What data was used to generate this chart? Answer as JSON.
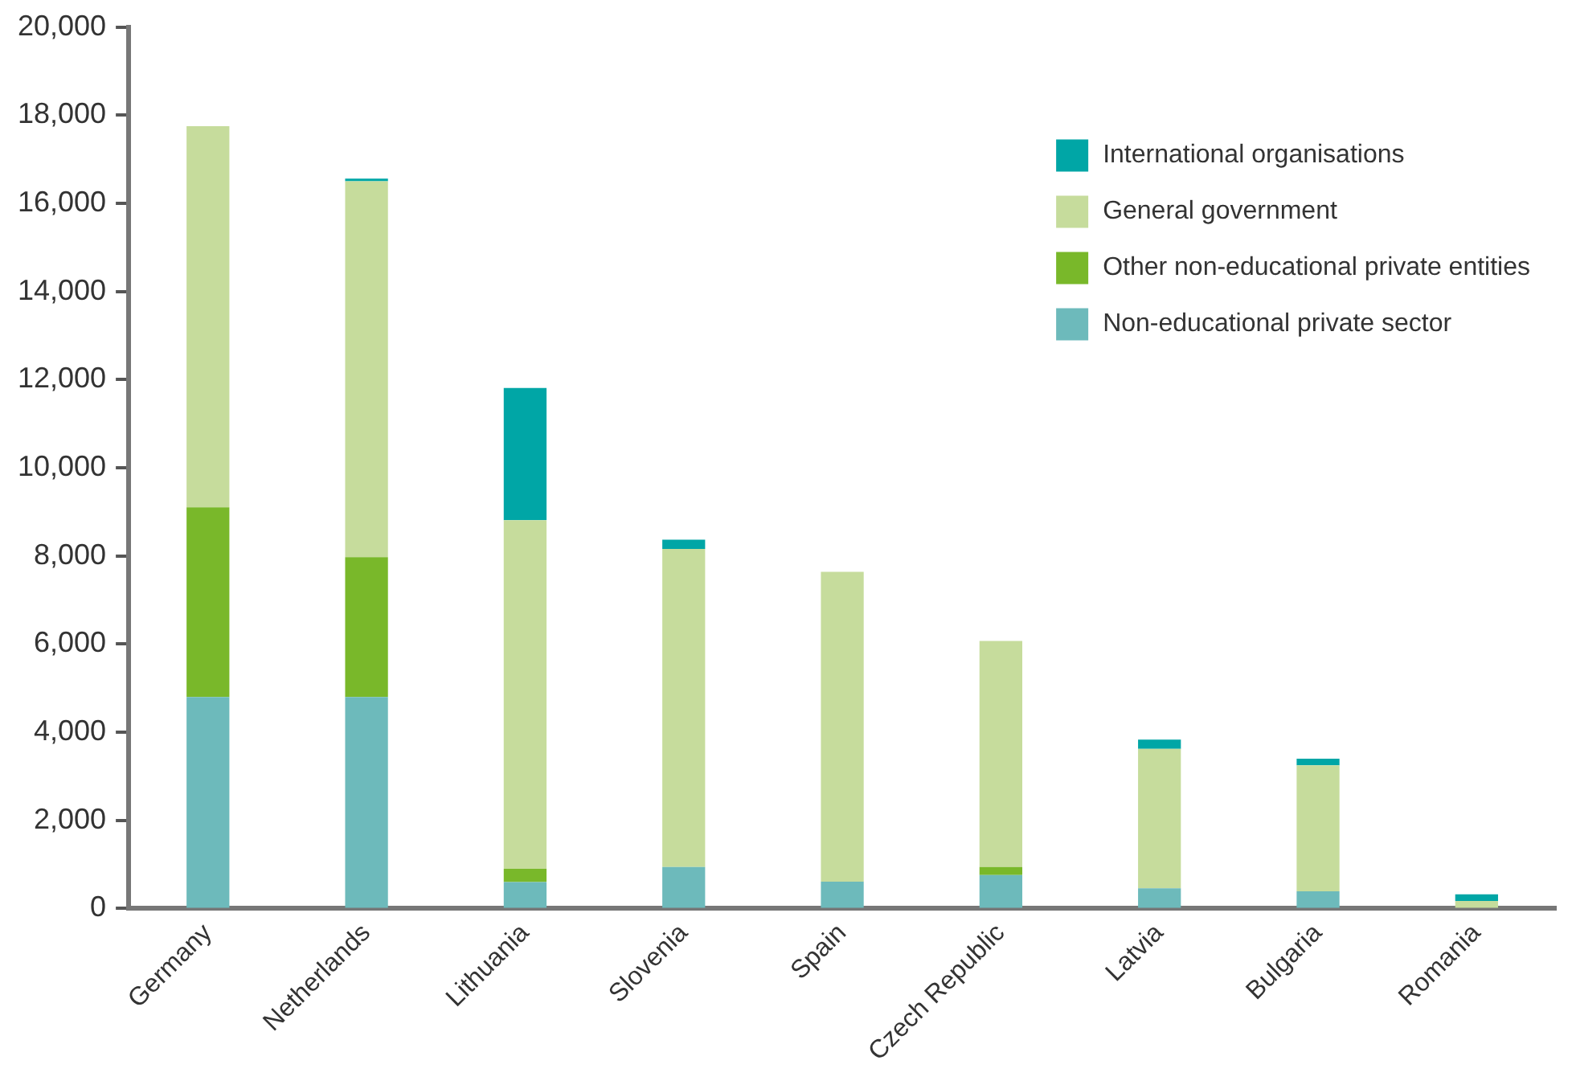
{
  "chart_data": {
    "type": "bar",
    "stacked": true,
    "categories": [
      "Germany",
      "Netherlands",
      "Lithuania",
      "Slovenia",
      "Spain",
      "Czech Republic",
      "Latvia",
      "Bulgaria",
      "Romania"
    ],
    "series": [
      {
        "name": "Non-educational private sector",
        "color": "#6dbabb",
        "values": [
          4800,
          4800,
          600,
          940,
          610,
          760,
          460,
          390,
          0
        ]
      },
      {
        "name": "Other non-educational private entities",
        "color": "#79b82a",
        "values": [
          4300,
          3170,
          300,
          0,
          0,
          180,
          0,
          0,
          0
        ]
      },
      {
        "name": "General government",
        "color": "#c6dc9c",
        "values": [
          8650,
          8530,
          7910,
          7220,
          7030,
          5130,
          3160,
          2860,
          170
        ]
      },
      {
        "name": "International organisations",
        "color": "#00a6a6",
        "values": [
          0,
          60,
          3000,
          210,
          0,
          0,
          210,
          150,
          150
        ]
      }
    ],
    "ylim": [
      0,
      20000
    ],
    "yticks": [
      0,
      {
        "value": 2000,
        "label": "2,000"
      },
      {
        "value": 4000,
        "label": "4,000"
      },
      {
        "value": 6000,
        "label": "6,000"
      },
      {
        "value": 8000,
        "label": "8,000"
      },
      {
        "value": 10000,
        "label": "10,000"
      },
      {
        "value": 12000,
        "label": "12,000"
      },
      {
        "value": 14000,
        "label": "14,000"
      },
      {
        "value": 16000,
        "label": "16,000"
      },
      {
        "value": 18000,
        "label": "18,000"
      },
      {
        "value": 20000,
        "label": "20,000"
      }
    ],
    "grid": false,
    "legend": "top right"
  }
}
